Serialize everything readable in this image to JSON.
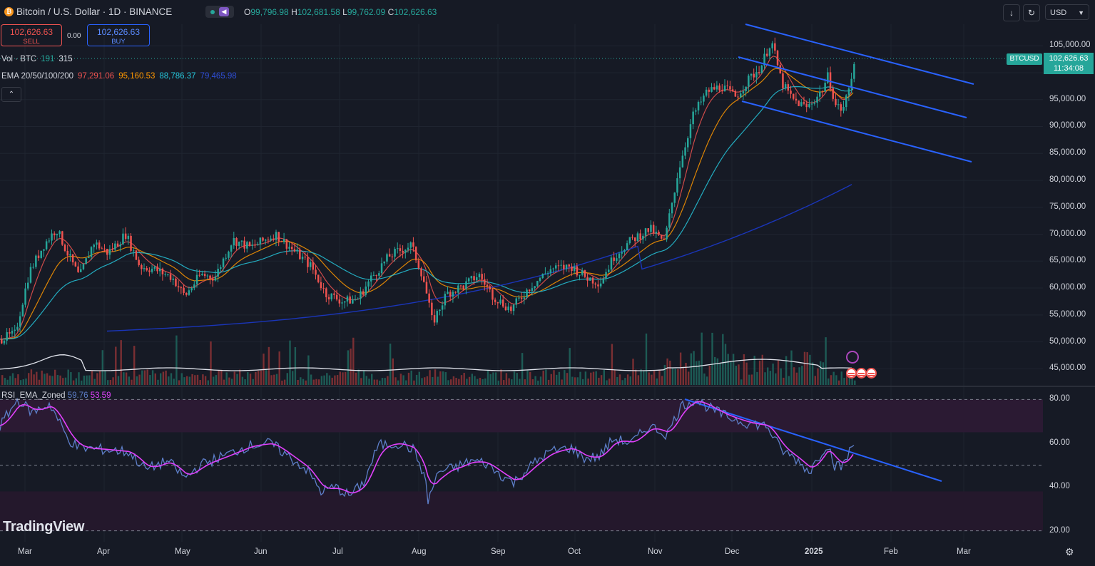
{
  "header": {
    "symbol_icon": "₿",
    "title": "Bitcoin / U.S. Dollar · 1D · BINANCE",
    "open_label": "O",
    "open": "99,796.98",
    "high_label": "H",
    "high": "102,681.58",
    "low_label": "L",
    "low": "99,762.09",
    "close_label": "C",
    "close": "102,626.63",
    "currency": "USD"
  },
  "trade": {
    "sell_price": "102,626.63",
    "sell_label": "SELL",
    "spread": "0.00",
    "buy_price": "102,626.63",
    "buy_label": "BUY"
  },
  "indicators": {
    "vol_label": "Vol · BTC",
    "vol_v1": "191",
    "vol_v2": "315",
    "ema_label": "EMA 20/50/100/200",
    "ema20": "97,291.06",
    "ema50": "95,160.53",
    "ema100": "88,786.37",
    "ema200": "79,465.98"
  },
  "price_scale": {
    "ticks": [
      "105,000.00",
      "95,000.00",
      "90,000.00",
      "85,000.00",
      "80,000.00",
      "75,000.00",
      "70,000.00",
      "65,000.00",
      "60,000.00",
      "55,000.00",
      "50,000.00",
      "45,000.00"
    ],
    "last_price": "102,626.63",
    "countdown": "11:34:08",
    "symbol_tag": "BTCUSD"
  },
  "rsi": {
    "label": "RSI_EMA_Zoned",
    "v1": "59.76",
    "v2": "53.59",
    "ticks": [
      "80.00",
      "60.00",
      "40.00",
      "20.00"
    ]
  },
  "time_axis": {
    "ticks": [
      "Mar",
      "Apr",
      "May",
      "Jun",
      "Jul",
      "Aug",
      "Sep",
      "Oct",
      "Nov",
      "Dec",
      "2025",
      "Feb",
      "Mar"
    ]
  },
  "branding": {
    "logo": "TradingView"
  },
  "colors": {
    "bg": "#161a25",
    "up": "#26a69a",
    "down": "#ef5350",
    "ema20": "#ef5350",
    "ema50": "#ff9800",
    "ema100": "#26c6da",
    "ema200": "#1a35b8",
    "trendline": "#2962ff",
    "rsi": "#5d7ec8",
    "rsi_ema": "#e040fb"
  },
  "chart_data": {
    "type": "candlestick",
    "symbol": "BTCUSD",
    "interval": "1D",
    "x": [
      "Mar",
      "Apr",
      "May",
      "Jun",
      "Jul",
      "Aug",
      "Sep",
      "Oct",
      "Nov",
      "Dec",
      "2025",
      "Feb",
      "Mar"
    ],
    "close_approx": [
      62000,
      69000,
      63000,
      67000,
      62000,
      64000,
      58500,
      61500,
      70000,
      97000,
      94000,
      102626.63
    ],
    "ylim": [
      42000,
      109000
    ],
    "last": {
      "open": 99796.98,
      "high": 102681.58,
      "low": 99762.09,
      "close": 102626.63
    },
    "series": [
      {
        "name": "EMA 20",
        "value": 97291.06
      },
      {
        "name": "EMA 50",
        "value": 95160.53
      },
      {
        "name": "EMA 100",
        "value": 88786.37
      },
      {
        "name": "EMA 200",
        "value": 79465.98
      }
    ],
    "rsi_panel": {
      "ylim": [
        15,
        85
      ],
      "bands": [
        80,
        50,
        20
      ],
      "rsi": 59.76,
      "rsi_ema": 53.59
    }
  }
}
